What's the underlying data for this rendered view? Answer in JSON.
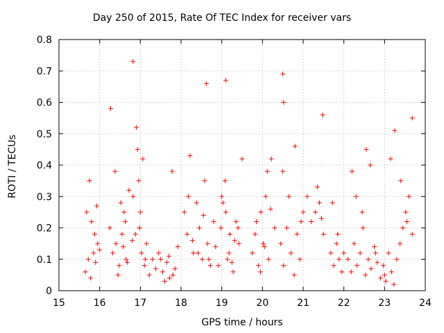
{
  "chart_data": {
    "type": "scatter",
    "title": "Day 250 of 2015, Rate Of TEC Index for receiver vars",
    "xlabel": "GPS time / hours",
    "ylabel": "ROTI / TECUs",
    "xlim": [
      15,
      24
    ],
    "ylim": [
      0,
      0.8
    ],
    "xticks": [
      "15",
      "16",
      "17",
      "18",
      "19",
      "20",
      "21",
      "22",
      "23",
      "24"
    ],
    "yticks": [
      "0",
      "0.1",
      "0.2",
      "0.3",
      "0.4",
      "0.5",
      "0.6",
      "0.7",
      "0.8"
    ],
    "grid": true,
    "marker": "+",
    "color": "#ff0000",
    "series": [
      {
        "name": "ROTI",
        "x": [
          15.65,
          15.72,
          15.78,
          15.85,
          15.9,
          15.95,
          16.0,
          15.68,
          15.75,
          15.8,
          15.88,
          15.93,
          16.25,
          16.32,
          16.4,
          16.48,
          16.55,
          16.6,
          16.65,
          16.72,
          16.8,
          16.38,
          16.45,
          16.52,
          16.58,
          16.63,
          16.68,
          16.82,
          16.88,
          16.93,
          16.98,
          17.03,
          17.1,
          17.15,
          17.22,
          17.3,
          17.38,
          16.9,
          16.96,
          17.0,
          17.06,
          17.12,
          17.45,
          17.55,
          17.65,
          17.72,
          17.78,
          17.85,
          17.92,
          17.5,
          17.6,
          17.7,
          17.8,
          18.08,
          18.15,
          18.22,
          18.3,
          18.38,
          18.45,
          18.52,
          18.58,
          18.65,
          18.72,
          18.8,
          18.18,
          18.28,
          18.42,
          18.55,
          18.68,
          18.85,
          18.92,
          18.98,
          19.03,
          19.08,
          19.14,
          19.2,
          19.28,
          19.35,
          19.42,
          19.5,
          19.0,
          19.1,
          19.18,
          19.25,
          19.32,
          19.4,
          19.75,
          19.82,
          19.9,
          19.96,
          20.02,
          20.08,
          20.15,
          20.22,
          20.3,
          19.85,
          19.95,
          20.05,
          20.12,
          20.2,
          20.45,
          20.52,
          20.6,
          20.7,
          20.78,
          20.85,
          20.92,
          21.0,
          20.5,
          20.65,
          20.8,
          20.95,
          21.1,
          21.2,
          21.3,
          21.4,
          21.5,
          21.35,
          21.45,
          21.68,
          21.75,
          21.82,
          21.88,
          21.95,
          22.0,
          21.72,
          21.85,
          22.1,
          22.18,
          22.25,
          22.32,
          22.4,
          22.47,
          22.53,
          22.6,
          22.67,
          22.75,
          22.82,
          22.2,
          22.3,
          22.45,
          22.55,
          22.65,
          22.78,
          22.9,
          22.97,
          23.03,
          23.1,
          23.17,
          23.23,
          23.3,
          23.38,
          23.45,
          23.52,
          23.6,
          23.68,
          23.0,
          23.15,
          23.25,
          23.4,
          23.55,
          16.82,
          20.5,
          20.52,
          18.62,
          19.1,
          16.27,
          21.48,
          23.68
        ],
        "y": [
          0.06,
          0.1,
          0.04,
          0.12,
          0.09,
          0.15,
          0.13,
          0.25,
          0.35,
          0.22,
          0.18,
          0.27,
          0.2,
          0.12,
          0.15,
          0.08,
          0.18,
          0.25,
          0.1,
          0.32,
          0.16,
          0.38,
          0.05,
          0.28,
          0.14,
          0.22,
          0.09,
          0.3,
          0.18,
          0.45,
          0.2,
          0.12,
          0.08,
          0.15,
          0.05,
          0.1,
          0.07,
          0.52,
          0.35,
          0.25,
          0.42,
          0.1,
          0.12,
          0.06,
          0.09,
          0.04,
          0.38,
          0.07,
          0.14,
          0.1,
          0.03,
          0.11,
          0.05,
          0.25,
          0.18,
          0.43,
          0.12,
          0.28,
          0.2,
          0.1,
          0.35,
          0.15,
          0.08,
          0.22,
          0.3,
          0.16,
          0.12,
          0.24,
          0.1,
          0.14,
          0.08,
          0.2,
          0.28,
          0.35,
          0.1,
          0.18,
          0.06,
          0.22,
          0.15,
          0.42,
          0.3,
          0.25,
          0.12,
          0.09,
          0.16,
          0.2,
          0.12,
          0.18,
          0.08,
          0.25,
          0.15,
          0.3,
          0.1,
          0.42,
          0.2,
          0.22,
          0.06,
          0.14,
          0.38,
          0.26,
          0.15,
          0.08,
          0.2,
          0.12,
          0.05,
          0.18,
          0.1,
          0.25,
          0.38,
          0.3,
          0.46,
          0.22,
          0.3,
          0.22,
          0.25,
          0.28,
          0.18,
          0.33,
          0.23,
          0.12,
          0.08,
          0.15,
          0.1,
          0.06,
          0.12,
          0.28,
          0.18,
          0.1,
          0.06,
          0.15,
          0.08,
          0.12,
          0.2,
          0.05,
          0.1,
          0.07,
          0.14,
          0.09,
          0.38,
          0.3,
          0.25,
          0.45,
          0.4,
          0.12,
          0.04,
          0.08,
          0.03,
          0.12,
          0.06,
          0.02,
          0.1,
          0.15,
          0.2,
          0.25,
          0.3,
          0.18,
          0.05,
          0.42,
          0.51,
          0.35,
          0.22,
          0.73,
          0.69,
          0.6,
          0.66,
          0.67,
          0.58,
          0.56,
          0.55
        ]
      }
    ]
  }
}
